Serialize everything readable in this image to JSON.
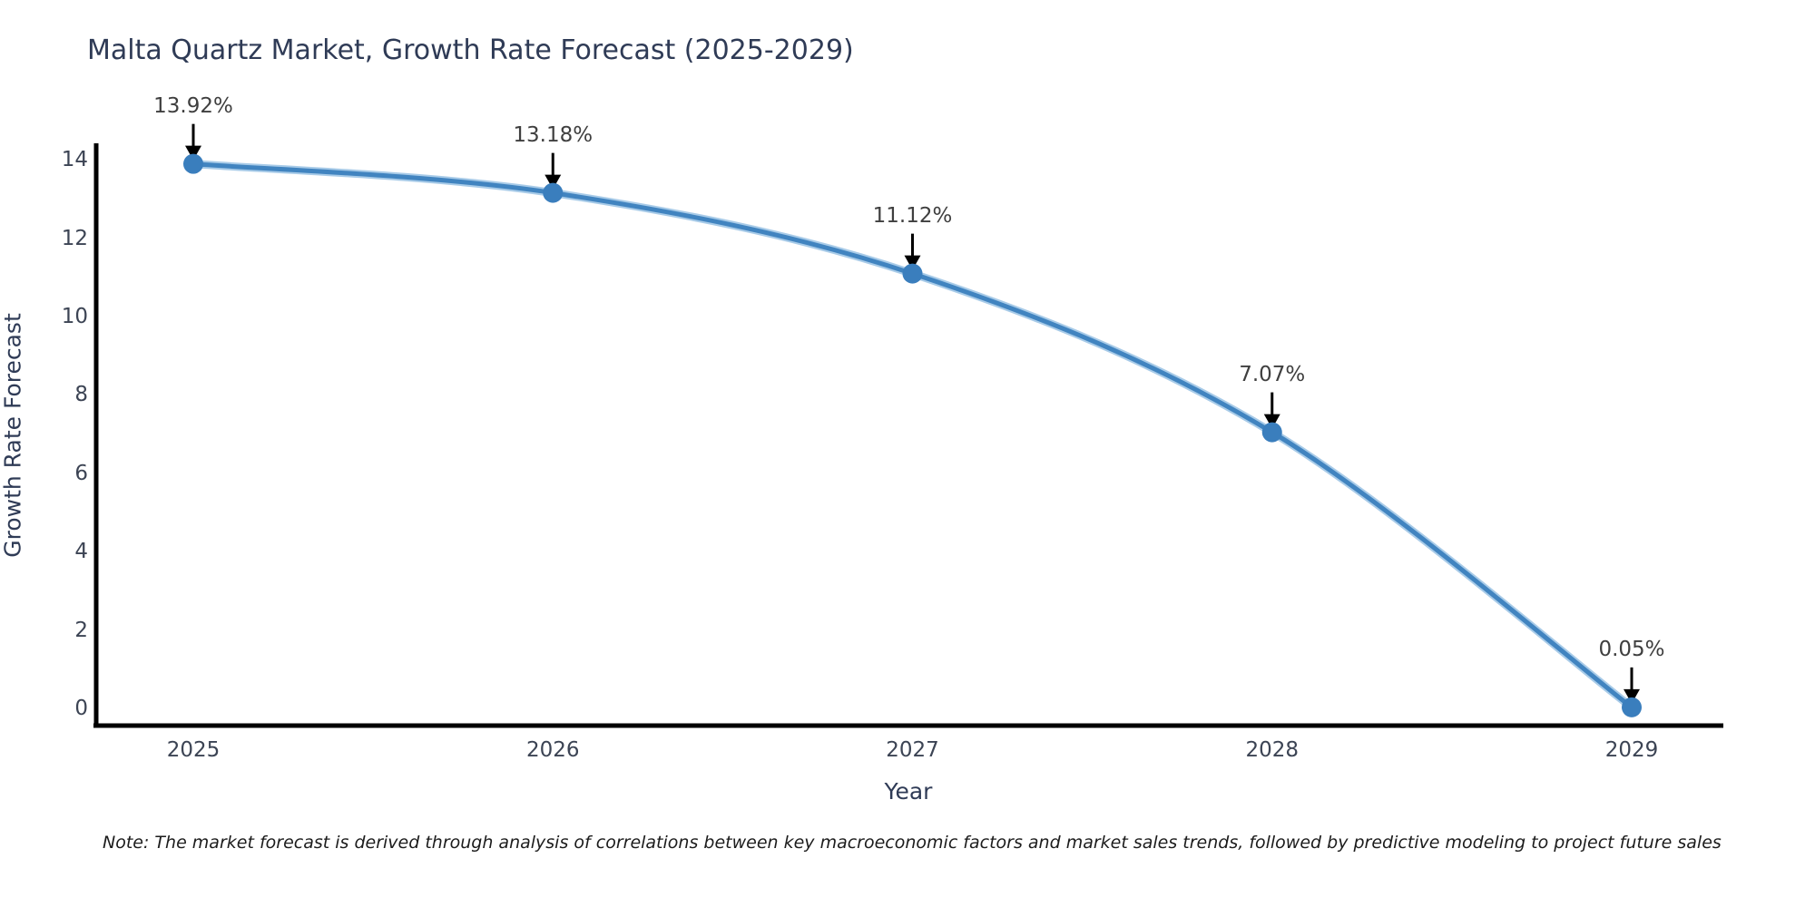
{
  "title": "Malta Quartz Market, Growth Rate Forecast (2025-2029)",
  "x_axis_label": "Year",
  "y_axis_label": "Growth Rate Forecast",
  "footnote": "Note: The market forecast is derived through analysis of correlations between key macroeconomic factors and market sales trends, followed by predictive modeling to project future sales",
  "chart_data": {
    "type": "line",
    "title": "Malta Quartz Market, Growth Rate Forecast (2025-2029)",
    "xlabel": "Year",
    "ylabel": "Growth Rate Forecast",
    "categories": [
      2025,
      2026,
      2027,
      2028,
      2029
    ],
    "series": [
      {
        "name": "Growth Rate Forecast",
        "values": [
          13.92,
          13.18,
          11.12,
          7.07,
          0.05
        ]
      }
    ],
    "point_labels": [
      "13.92%",
      "13.18%",
      "11.12%",
      "7.07%",
      "0.05%"
    ],
    "ylim": [
      0,
      14
    ],
    "yticks": [
      "0",
      "2",
      "4",
      "6",
      "8",
      "10",
      "12",
      "14"
    ],
    "xticks": [
      "2025",
      "2026",
      "2027",
      "2028",
      "2029"
    ],
    "grid": false,
    "legend_position": "none",
    "colors": {
      "line": "#4184c0",
      "line_halo": "#a8cbe8",
      "marker": "#3a7ebd",
      "arrow": "#000000",
      "axis_line": "#000000",
      "title_text": "#2f3b56",
      "tick_text": "#3c4454",
      "annotation_text": "#3f3f3f"
    }
  }
}
